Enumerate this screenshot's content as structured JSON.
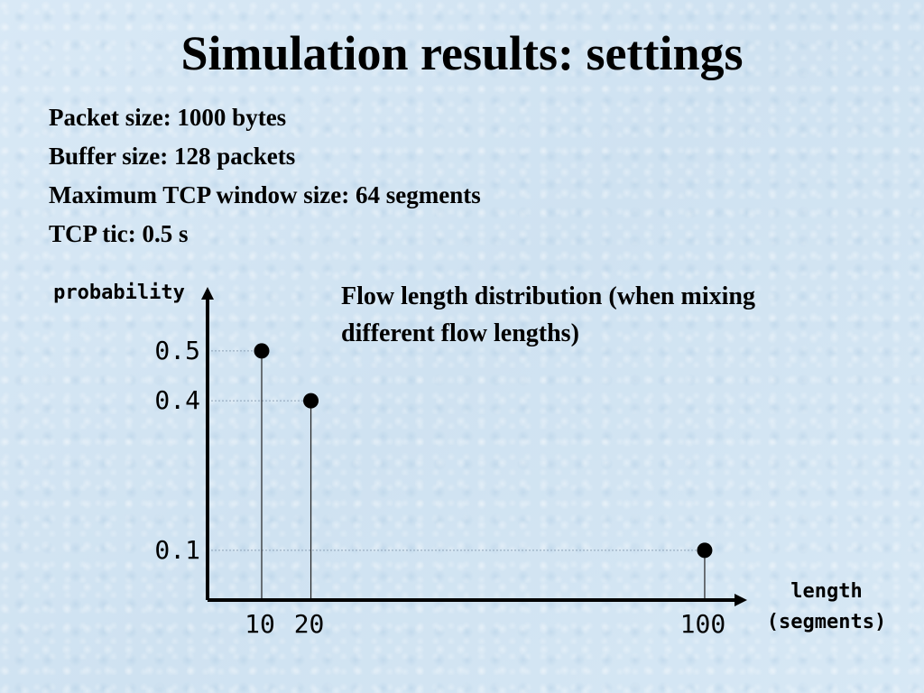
{
  "slide": {
    "title": "Simulation results: settings",
    "settings": [
      "Packet size: 1000 bytes",
      "Buffer size: 128 packets",
      "Maximum TCP window size: 64 segments",
      "TCP tic: 0.5 s"
    ],
    "caption_line1": "Flow length distribution (when mixing",
    "caption_line2": "different flow lengths)"
  },
  "chart_data": {
    "type": "scatter",
    "style": "stem",
    "ylabel": "probability",
    "xlabel_line1": "length",
    "xlabel_line2": "(segments)",
    "x": [
      10,
      20,
      100
    ],
    "y": [
      0.5,
      0.4,
      0.1
    ],
    "x_tick_labels": [
      "10",
      "20",
      "100"
    ],
    "y_tick_labels": [
      "0.1",
      "0.4",
      "0.5"
    ],
    "y_ticks": [
      0.1,
      0.4,
      0.5
    ],
    "xlim": [
      0,
      108
    ],
    "ylim": [
      0,
      0.65
    ],
    "grid": false,
    "colors": {
      "marker": "#000000",
      "axis": "#000000",
      "guide": "#8ea3b8"
    }
  }
}
